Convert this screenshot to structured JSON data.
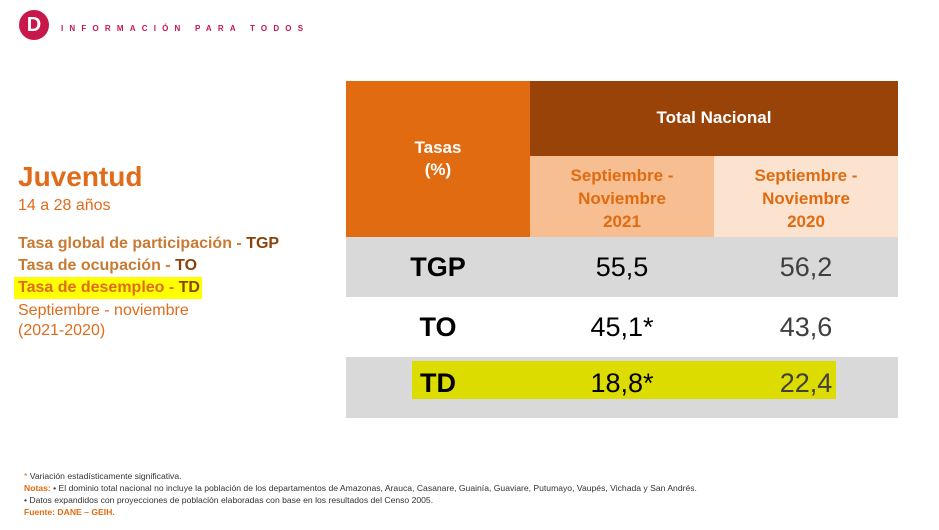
{
  "header": {
    "logo_letter": "D",
    "brand": "INFORMACIÓN PARA TODOS"
  },
  "left": {
    "title": "Juventud",
    "subtitle": "14 a 28 años",
    "indicators": [
      {
        "name": "Tasa global de participación - ",
        "abbr": "TGP"
      },
      {
        "name": "Tasa de ocupación - ",
        "abbr": "TO"
      },
      {
        "name": "Tasa de desempleo - ",
        "abbr": "TD",
        "highlighted": true
      }
    ],
    "period_line1": "Septiembre - noviembre",
    "period_line2": "(2021-2020)"
  },
  "table": {
    "col0_line1": "Tasas",
    "col0_line2": "(%)",
    "group_header": "Total Nacional",
    "periods": [
      {
        "line1": "Septiembre -",
        "line2": "Noviembre",
        "line3": "2021"
      },
      {
        "line1": "Septiembre -",
        "line2": "Noviembre",
        "line3": "2020"
      }
    ],
    "rows": [
      {
        "label": "TGP",
        "v2021": "55,5",
        "v2020": "56,2"
      },
      {
        "label": "TO",
        "v2021": "45,1*",
        "v2020": "43,6"
      },
      {
        "label": "TD",
        "v2021": "18,8*",
        "v2020": "22,4"
      }
    ]
  },
  "footer": {
    "asterisk": "*",
    "asterisk_text": " Variación estadísticamente significativa.",
    "notes_label": "Notas:",
    "note1": " • El dominio total nacional no incluye la población de los departamentos de Amazonas, Arauca, Casanare, Guainía, Guaviare, Putumayo, Vaupés, Vichada y San Andrés.",
    "note2": " • Datos expandidos con proyecciones de población elaboradas con base en los resultados del Censo 2005.",
    "source": "Fuente: DANE – GEIH."
  },
  "colors": {
    "brand": "#c8174b",
    "orange": "#e06b10",
    "brown": "#9a4308",
    "highlight_td": "#dcdc00",
    "highlight_text": "#ffff00"
  }
}
